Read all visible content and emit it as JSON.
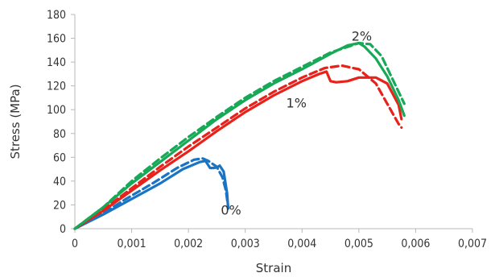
{
  "chart_data": {
    "type": "line",
    "title": "",
    "xlabel": "Strain",
    "ylabel": "Stress (MPa)",
    "xlim": [
      0,
      0.007
    ],
    "ylim": [
      0,
      180
    ],
    "x_ticks": [
      0,
      0.001,
      0.002,
      0.003,
      0.004,
      0.005,
      0.006,
      0.007
    ],
    "x_tick_labels": [
      "0",
      "0,001",
      "0,002",
      "0,003",
      "0,004",
      "0,005",
      "0,006",
      "0,007"
    ],
    "y_ticks": [
      0,
      20,
      40,
      60,
      80,
      100,
      120,
      140,
      160,
      180
    ],
    "y_tick_labels": [
      "0",
      "20",
      "40",
      "60",
      "80",
      "100",
      "120",
      "140",
      "160",
      "180"
    ],
    "grid": false,
    "legend": "none",
    "annotations": [
      {
        "text": "0%",
        "x": 0.00275,
        "y": 12
      },
      {
        "text": "1%",
        "x": 0.0039,
        "y": 102
      },
      {
        "text": "2%",
        "x": 0.00505,
        "y": 158
      }
    ],
    "series": [
      {
        "color": "#1a74c4",
        "dash": "solid",
        "points": [
          [
            0,
            0
          ],
          [
            0.0005,
            12
          ],
          [
            0.001,
            25
          ],
          [
            0.0015,
            38
          ],
          [
            0.0019,
            50
          ],
          [
            0.0022,
            56
          ],
          [
            0.0023,
            57
          ],
          [
            0.00238,
            51
          ],
          [
            0.00245,
            51
          ],
          [
            0.0025,
            51.5
          ],
          [
            0.00255,
            53
          ],
          [
            0.00262,
            48
          ],
          [
            0.00268,
            30
          ],
          [
            0.0027,
            17
          ]
        ]
      },
      {
        "color": "#1a74c4",
        "dash": "dashed",
        "points": [
          [
            0,
            0
          ],
          [
            0.0004,
            10
          ],
          [
            0.0009,
            25
          ],
          [
            0.0014,
            39
          ],
          [
            0.0018,
            51
          ],
          [
            0.0021,
            58
          ],
          [
            0.00225,
            59
          ],
          [
            0.00235,
            57
          ],
          [
            0.0025,
            52
          ],
          [
            0.0026,
            43
          ],
          [
            0.00266,
            32
          ],
          [
            0.0027,
            18
          ]
        ]
      },
      {
        "color": "#e8211b",
        "dash": "solid",
        "points": [
          [
            0,
            0
          ],
          [
            0.0005,
            15
          ],
          [
            0.001,
            32
          ],
          [
            0.0015,
            49
          ],
          [
            0.002,
            65
          ],
          [
            0.0025,
            82
          ],
          [
            0.003,
            98
          ],
          [
            0.0035,
            112
          ],
          [
            0.004,
            124
          ],
          [
            0.0043,
            130
          ],
          [
            0.00443,
            132
          ],
          [
            0.0045,
            124
          ],
          [
            0.0046,
            123
          ],
          [
            0.0048,
            124
          ],
          [
            0.005,
            127
          ],
          [
            0.0053,
            127
          ],
          [
            0.0055,
            122
          ],
          [
            0.0057,
            104
          ],
          [
            0.00575,
            92
          ]
        ]
      },
      {
        "color": "#e8211b",
        "dash": "dashed",
        "points": [
          [
            0,
            0
          ],
          [
            0.0005,
            16
          ],
          [
            0.001,
            34
          ],
          [
            0.0015,
            52
          ],
          [
            0.002,
            69
          ],
          [
            0.0025,
            85
          ],
          [
            0.003,
            101
          ],
          [
            0.0035,
            115
          ],
          [
            0.004,
            127
          ],
          [
            0.0044,
            135
          ],
          [
            0.0047,
            137
          ],
          [
            0.005,
            134
          ],
          [
            0.0053,
            122
          ],
          [
            0.0055,
            105
          ],
          [
            0.0057,
            88
          ],
          [
            0.00575,
            85
          ]
        ]
      },
      {
        "color": "#17a957",
        "dash": "solid",
        "points": [
          [
            0,
            0
          ],
          [
            0.0005,
            18
          ],
          [
            0.001,
            38
          ],
          [
            0.0015,
            56
          ],
          [
            0.002,
            74
          ],
          [
            0.0025,
            92
          ],
          [
            0.003,
            108
          ],
          [
            0.0035,
            122
          ],
          [
            0.004,
            134
          ],
          [
            0.0045,
            147
          ],
          [
            0.0048,
            154
          ],
          [
            0.005,
            156
          ],
          [
            0.0051,
            153
          ],
          [
            0.0053,
            143
          ],
          [
            0.0055,
            128
          ],
          [
            0.0057,
            108
          ],
          [
            0.0058,
            95
          ]
        ]
      },
      {
        "color": "#17a957",
        "dash": "dashed",
        "points": [
          [
            0,
            0
          ],
          [
            0.0005,
            18
          ],
          [
            0.001,
            40
          ],
          [
            0.0015,
            59
          ],
          [
            0.002,
            77
          ],
          [
            0.0025,
            94
          ],
          [
            0.003,
            110
          ],
          [
            0.0035,
            124
          ],
          [
            0.004,
            136
          ],
          [
            0.0045,
            148
          ],
          [
            0.005,
            156
          ],
          [
            0.0052,
            155
          ],
          [
            0.0054,
            145
          ],
          [
            0.0056,
            125
          ],
          [
            0.0058,
            105
          ]
        ]
      }
    ]
  }
}
